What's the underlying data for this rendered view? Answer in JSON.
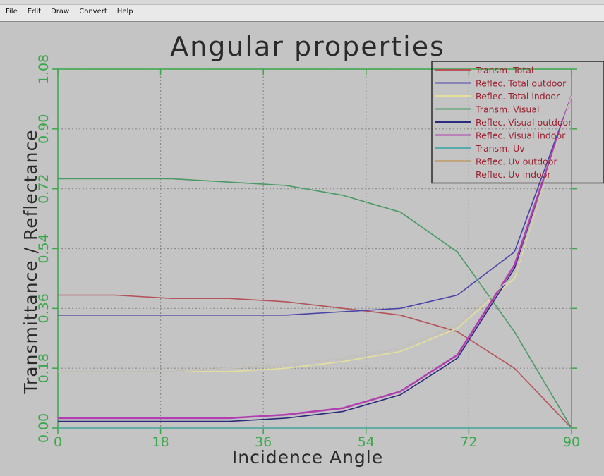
{
  "menu": {
    "items": [
      "File",
      "Edit",
      "Draw",
      "Convert",
      "Help"
    ]
  },
  "colors": {
    "background": "#c4c4c4",
    "axis": "#3aa84a",
    "grid": "#8a8a8a",
    "text": "#1a1a1a",
    "legend_text": "#9a2230"
  },
  "chart_data": {
    "type": "line",
    "title": "Angular properties",
    "xlabel": "Incidence Angle",
    "ylabel": "Transmittance / Reflectance",
    "xlim": [
      0,
      90
    ],
    "ylim": [
      0,
      1.08
    ],
    "xticks": [
      "0",
      "18",
      "36",
      "54",
      "72",
      "90"
    ],
    "xtick_values": [
      0,
      18,
      36,
      54,
      72,
      90
    ],
    "yticks": [
      "0.00",
      "0.18",
      "0.36",
      "0.54",
      "0.72",
      "0.90",
      "1.08"
    ],
    "ytick_values": [
      0,
      0.18,
      0.36,
      0.54,
      0.72,
      0.9,
      1.08
    ],
    "grid": true,
    "legend_position": "top-right",
    "x": [
      0,
      10,
      20,
      30,
      40,
      50,
      60,
      70,
      80,
      90
    ],
    "series": [
      {
        "name": "Transm. Total",
        "color": "#b4545a",
        "values": [
          0.4,
          0.4,
          0.39,
          0.39,
          0.38,
          0.36,
          0.34,
          0.29,
          0.18,
          0.0
        ]
      },
      {
        "name": "Reflec. Total outdoor",
        "color": "#4a44a8",
        "values": [
          0.34,
          0.34,
          0.34,
          0.34,
          0.34,
          0.35,
          0.36,
          0.4,
          0.53,
          1.0
        ]
      },
      {
        "name": "Reflec. Total indoor",
        "color": "#e6df9a",
        "values": [
          0.17,
          0.17,
          0.17,
          0.17,
          0.18,
          0.2,
          0.23,
          0.3,
          0.45,
          1.0
        ]
      },
      {
        "name": "Transm. Visual",
        "color": "#4a9a64",
        "values": [
          0.75,
          0.75,
          0.75,
          0.74,
          0.73,
          0.7,
          0.65,
          0.53,
          0.29,
          0.0
        ]
      },
      {
        "name": "Reflec. Visual outdoor",
        "color": "#2a2a7a",
        "values": [
          0.02,
          0.02,
          0.02,
          0.02,
          0.03,
          0.05,
          0.1,
          0.21,
          0.48,
          1.0
        ]
      },
      {
        "name": "Reflec. Visual indoor",
        "color": "#b040b0",
        "values": [
          0.03,
          0.03,
          0.03,
          0.03,
          0.04,
          0.06,
          0.11,
          0.22,
          0.49,
          1.0
        ]
      },
      {
        "name": "Transm. Uv",
        "color": "#58aaaa",
        "values": [
          0.0,
          0.0,
          0.0,
          0.0,
          0.0,
          0.0,
          0.0,
          0.0,
          0.0,
          0.0
        ]
      },
      {
        "name": "Reflec. Uv outdoor",
        "color": "#b8863c",
        "values": [
          0.17,
          0.17,
          0.17,
          0.18,
          0.19,
          0.21,
          0.24,
          0.31,
          0.46,
          1.0
        ]
      },
      {
        "name": "Reflec. Uv indoor",
        "color": "#c4c4c4",
        "values": [
          0.17,
          0.17,
          0.17,
          0.18,
          0.19,
          0.21,
          0.24,
          0.31,
          0.46,
          1.0
        ]
      }
    ]
  }
}
